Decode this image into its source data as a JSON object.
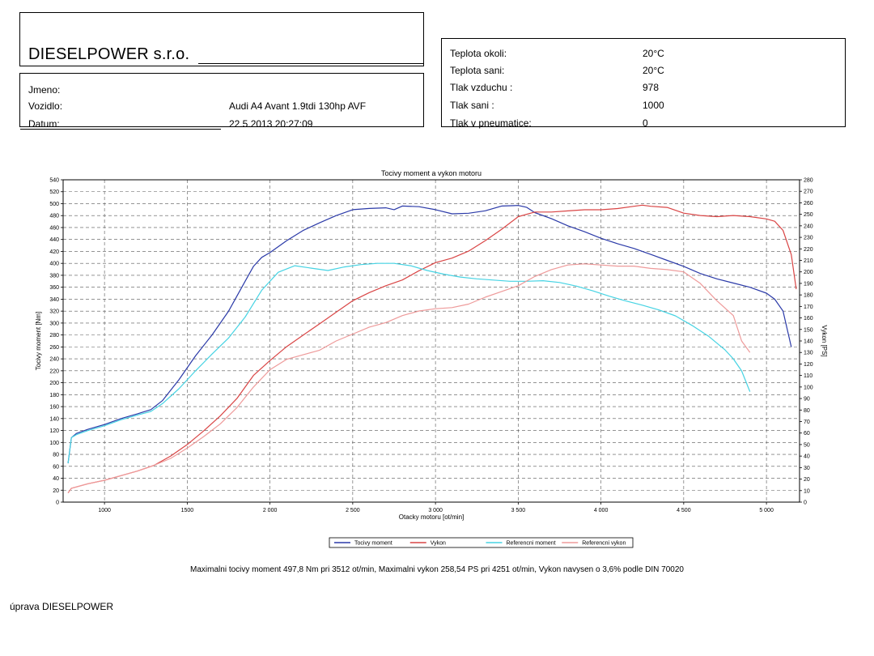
{
  "company": {
    "name": "DIESELPOWER s.r.o."
  },
  "customer": {
    "name_label": "Jmeno:",
    "name_value": "",
    "vehicle_label": "Vozidlo:",
    "vehicle_value": "Audi A4 Avant 1.9tdi 130hp AVF",
    "date_label": "Datum:",
    "date_value": "22.5.2013 20:27:09"
  },
  "conditions": {
    "ambient_temp_label": "Teplota okoli:",
    "ambient_temp_value": "20°C",
    "intake_temp_label": "Teplota sani:",
    "intake_temp_value": "20°C",
    "air_pressure_label": "Tlak vzduchu :",
    "air_pressure_value": "978",
    "intake_pressure_label": "Tlak sani :",
    "intake_pressure_value": "1000",
    "tire_pressure_label": "Tlak v pneumatice:",
    "tire_pressure_value": "0"
  },
  "summary": "Maximalni tocivy moment 497,8 Nm pri 3512 ot/min,  Maximalni vykon 258,54 PS pri 4251 ot/min,  Vykon navysen o 3,6% podle DIN 70020",
  "footer": "úprava DIESELPOWER",
  "chart_data": {
    "type": "line",
    "title": "Tocivy moment a vykon motoru",
    "xlabel": "Otacky motoru [ot/min]",
    "ylabel": "Tocivy moment [Nm]",
    "y2label": "Vykon [PS]",
    "xlim": [
      750,
      5200
    ],
    "ylim": [
      0,
      540
    ],
    "y2lim": [
      0,
      280
    ],
    "x_ticks": [
      1000,
      1500,
      2000,
      2500,
      3000,
      3500,
      4000,
      4500,
      5000
    ],
    "x_tick_labels": [
      "1000",
      "1500",
      "2 000",
      "2 500",
      "3 000",
      "3 500",
      "4 000",
      "4 500",
      "5 000"
    ],
    "y_tick_step": 20,
    "y2_tick_step": 10,
    "grid": true,
    "legend_position": "bottom-center",
    "series": [
      {
        "name": "Tocivy moment",
        "axis": "left",
        "color": "#2b3aa8",
        "x": [
          780,
          800,
          830,
          900,
          1000,
          1100,
          1200,
          1280,
          1350,
          1450,
          1550,
          1650,
          1750,
          1800,
          1850,
          1900,
          1950,
          2000,
          2100,
          2200,
          2300,
          2400,
          2500,
          2600,
          2700,
          2750,
          2800,
          2900,
          3000,
          3100,
          3200,
          3300,
          3400,
          3500,
          3550,
          3600,
          3700,
          3800,
          3900,
          4000,
          4100,
          4200,
          4300,
          4400,
          4500,
          4600,
          4700,
          4800,
          4900,
          5000,
          5050,
          5100,
          5150
        ],
        "y": [
          65,
          108,
          115,
          122,
          130,
          140,
          148,
          155,
          170,
          205,
          245,
          280,
          320,
          345,
          370,
          395,
          410,
          418,
          438,
          455,
          468,
          480,
          490,
          492,
          493,
          490,
          496,
          495,
          490,
          483,
          484,
          488,
          496,
          497,
          494,
          485,
          475,
          463,
          453,
          442,
          433,
          425,
          415,
          405,
          395,
          383,
          374,
          367,
          360,
          350,
          340,
          320,
          260
        ]
      },
      {
        "name": "Vykon",
        "axis": "right",
        "color": "#d94545",
        "x": [
          780,
          800,
          900,
          1000,
          1100,
          1200,
          1300,
          1400,
          1500,
          1600,
          1700,
          1800,
          1900,
          2000,
          2100,
          2200,
          2300,
          2400,
          2500,
          2600,
          2700,
          2800,
          2900,
          3000,
          3100,
          3200,
          3300,
          3400,
          3500,
          3600,
          3700,
          3800,
          3900,
          4000,
          4100,
          4200,
          4250,
          4300,
          4400,
          4500,
          4600,
          4700,
          4800,
          4900,
          5000,
          5050,
          5100,
          5150,
          5180
        ],
        "y": [
          8,
          12,
          16,
          19,
          23,
          27,
          32,
          40,
          50,
          62,
          75,
          90,
          110,
          123,
          135,
          145,
          155,
          165,
          175,
          182,
          188,
          193,
          201,
          208,
          212,
          218,
          227,
          237,
          248,
          252,
          252,
          253,
          254,
          254,
          255,
          257,
          258,
          257,
          256,
          251,
          249,
          248,
          249,
          248,
          246,
          244,
          236,
          215,
          185
        ]
      },
      {
        "name": "Referencni moment",
        "axis": "left",
        "color": "#46d3e3",
        "x": [
          780,
          800,
          830,
          900,
          1000,
          1100,
          1200,
          1280,
          1350,
          1450,
          1550,
          1650,
          1750,
          1850,
          1950,
          2050,
          2150,
          2250,
          2350,
          2450,
          2550,
          2650,
          2750,
          2850,
          2950,
          3050,
          3150,
          3250,
          3350,
          3450,
          3550,
          3650,
          3750,
          3850,
          3950,
          4050,
          4150,
          4250,
          4350,
          4450,
          4550,
          4650,
          4750,
          4800,
          4850,
          4900
        ],
        "y": [
          65,
          108,
          113,
          120,
          128,
          138,
          146,
          152,
          165,
          190,
          220,
          248,
          275,
          310,
          355,
          385,
          396,
          392,
          388,
          394,
          398,
          400,
          400,
          396,
          388,
          382,
          377,
          374,
          372,
          370,
          370,
          371,
          368,
          362,
          354,
          345,
          337,
          330,
          322,
          312,
          296,
          278,
          255,
          240,
          220,
          185
        ]
      },
      {
        "name": "Referencni vykon",
        "axis": "right",
        "color": "#ee9a9a",
        "x": [
          780,
          800,
          900,
          1000,
          1100,
          1200,
          1300,
          1400,
          1500,
          1600,
          1700,
          1800,
          1900,
          2000,
          2100,
          2200,
          2300,
          2400,
          2500,
          2600,
          2700,
          2800,
          2900,
          3000,
          3100,
          3200,
          3300,
          3400,
          3500,
          3600,
          3700,
          3800,
          3900,
          4000,
          4100,
          4200,
          4300,
          4400,
          4500,
          4600,
          4700,
          4800,
          4850,
          4900
        ],
        "y": [
          8,
          12,
          16,
          19,
          23,
          27,
          32,
          38,
          47,
          57,
          68,
          82,
          100,
          115,
          124,
          128,
          132,
          140,
          146,
          152,
          156,
          162,
          166,
          168,
          169,
          172,
          178,
          183,
          188,
          196,
          202,
          206,
          207,
          206,
          205,
          205,
          203,
          202,
          200,
          190,
          175,
          162,
          140,
          130
        ]
      }
    ]
  }
}
